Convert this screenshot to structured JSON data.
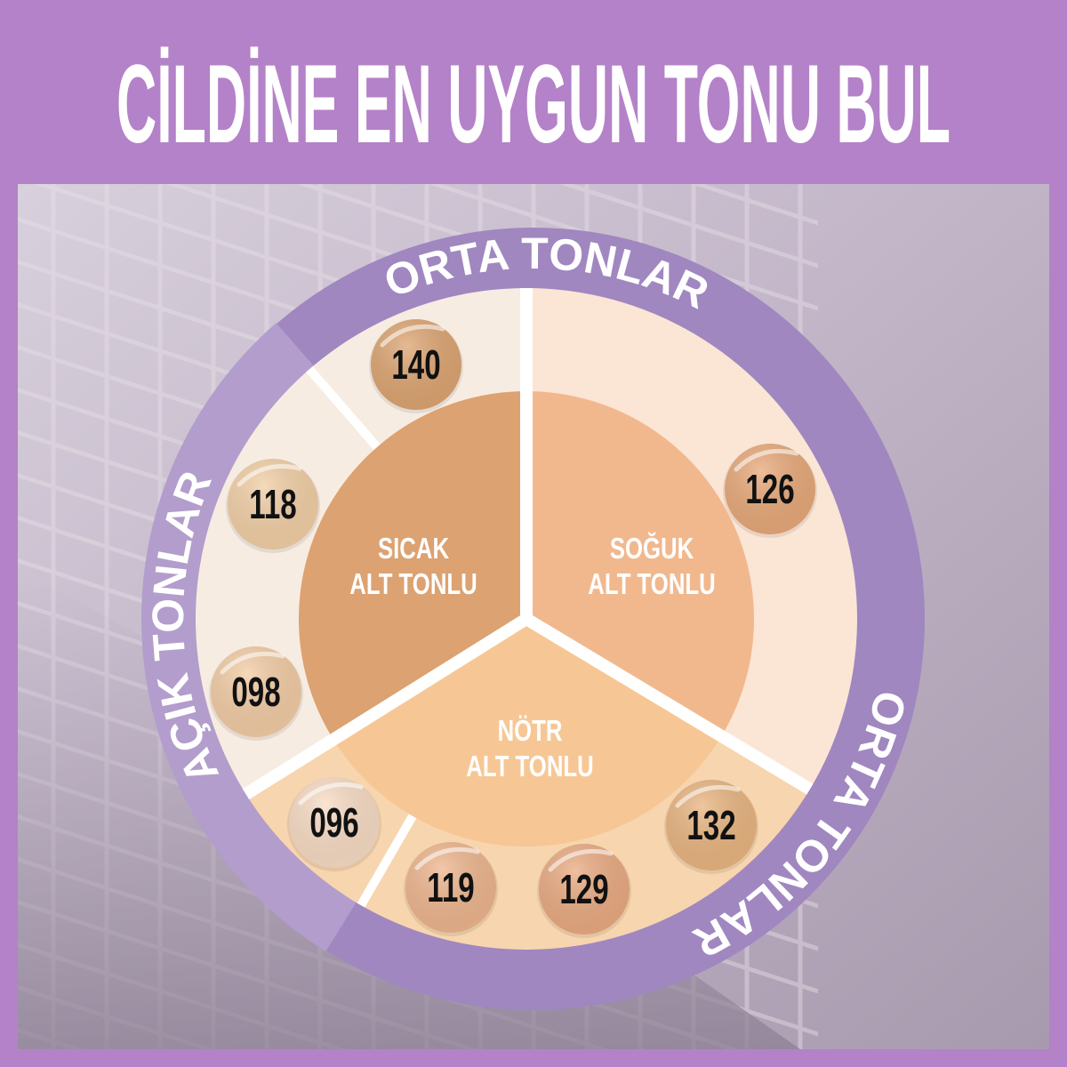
{
  "title": "CİLDİNE EN UYGUN TONU BUL",
  "colors": {
    "background": "#b482c8",
    "ring_dark": "#a087c0",
    "ring_light": "#b29dcc",
    "sector_warm_outer": "#f7ece2",
    "sector_cool_outer": "#fbe5d5",
    "sector_neutral_outer": "#f7d5ae",
    "warm_center": "#dca271",
    "cool_center": "#f1b88e",
    "neutral_center": "#f6c795"
  },
  "ring_labels": {
    "top": "ORTA TONLAR",
    "left": "AÇIK TONLAR",
    "right": "ORTA TONLAR"
  },
  "undertones": {
    "warm": {
      "line1": "SICAK",
      "line2": "ALT TONLU"
    },
    "cool": {
      "line1": "SOĞUK",
      "line2": "ALT TONLU"
    },
    "neutral": {
      "line1": "NÖTR",
      "line2": "ALT TONLU"
    }
  },
  "shades": [
    {
      "code": "140",
      "color": "#dda470"
    },
    {
      "code": "118",
      "color": "#f2cfa5"
    },
    {
      "code": "098",
      "color": "#f3cca4"
    },
    {
      "code": "126",
      "color": "#e8a878"
    },
    {
      "code": "096",
      "color": "#f8dcc4"
    },
    {
      "code": "119",
      "color": "#eeb58d"
    },
    {
      "code": "129",
      "color": "#eaaa80"
    },
    {
      "code": "132",
      "color": "#e9b47f"
    }
  ]
}
